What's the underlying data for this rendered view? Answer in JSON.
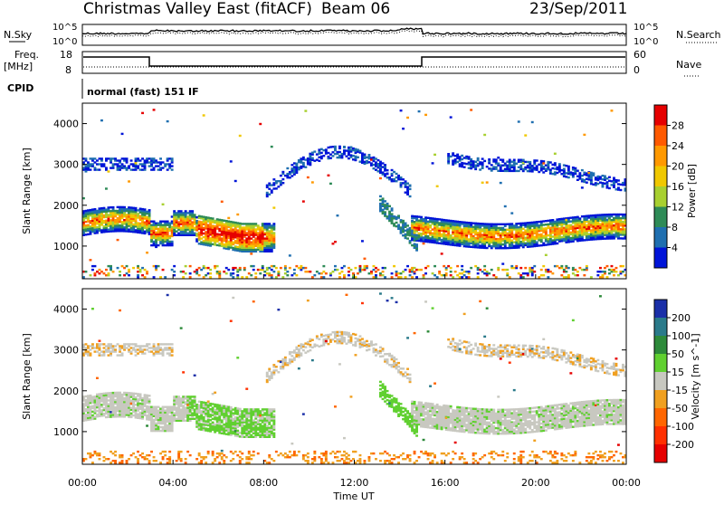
{
  "header": {
    "title": "Christmas Valley East (fitACF)",
    "beam": "Beam 06",
    "date": "23/Sep/2011"
  },
  "top_panels": {
    "nsky_label": "N.Sky",
    "nsky_ticks": [
      "10^5",
      "10^0"
    ],
    "nsearch_label": "N.Search",
    "nsearch_ticks": [
      "10^5",
      "10^0"
    ],
    "freq_label": "Freq.",
    "freq_unit": "[MHz]",
    "freq_ticks": [
      "18",
      "8"
    ],
    "nave_label": "Nave",
    "nave_ticks": [
      "60",
      "0"
    ],
    "cpid_label": "CPID",
    "mode_text": "normal (fast) 151 IF"
  },
  "chart_data": [
    {
      "type": "heatmap",
      "name": "power",
      "ylabel": "Slant Range [km]",
      "ylim": [
        200,
        4500
      ],
      "yticks": [
        "4000",
        "3000",
        "2000",
        "1000"
      ],
      "xlim": [
        "00:00",
        "24:00"
      ],
      "colorbar": {
        "label": "Power [dB]",
        "ticks": [
          "28",
          "24",
          "20",
          "16",
          "12",
          "8",
          "4"
        ],
        "colors": [
          "#e60000",
          "#ff5a00",
          "#ff9900",
          "#f0c800",
          "#a8d030",
          "#2e8b57",
          "#1f6fb0",
          "#0014d8"
        ]
      },
      "bands_note": "echo bands ~1500 km, ~3000 km, ~2900 km arc"
    },
    {
      "type": "heatmap",
      "name": "velocity",
      "ylabel": "Slant Range [km]",
      "ylim": [
        200,
        4500
      ],
      "yticks": [
        "4000",
        "3000",
        "2000",
        "1000"
      ],
      "xlim": [
        "00:00",
        "24:00"
      ],
      "colorbar": {
        "label": "Velocity [m s^-1]",
        "ticks": [
          "200",
          "100",
          "50",
          "15",
          "-15",
          "-50",
          "-100",
          "-200"
        ],
        "colors": [
          "#1a2fa8",
          "#2a7a8a",
          "#2d8a3a",
          "#60d030",
          "#c8c8c0",
          "#f0a020",
          "#ff6600",
          "#ff3000",
          "#e60000"
        ]
      }
    }
  ],
  "x_axis": {
    "ticks": [
      "00:00",
      "04:00",
      "08:00",
      "12:00",
      "16:00",
      "20:00",
      "00:00"
    ],
    "label": "Time UT"
  },
  "colors": {
    "axis": "#000000",
    "gray_velocity": "#c8c8c0"
  }
}
